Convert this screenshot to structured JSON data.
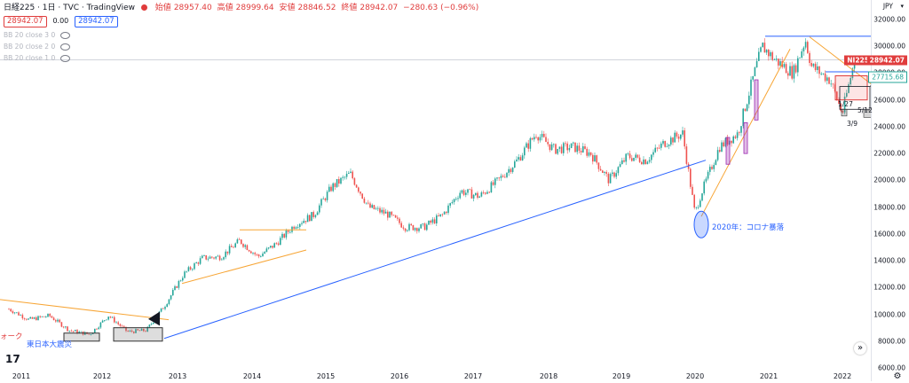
{
  "header": {
    "symbol": "日経225",
    "interval": "1日",
    "source": "TVC",
    "platform": "TradingView",
    "open_label": "始値",
    "open": "28957.40",
    "high_label": "高値",
    "high": "28999.64",
    "low_label": "安値",
    "low": "28846.52",
    "close_label": "終値",
    "close": "28942.07",
    "change": "−280.63 (−0.96%)",
    "price_red": "28942.07",
    "spread": "0.00",
    "price_blue": "28942.07"
  },
  "indicators": [
    {
      "label": "BB 20 close 3 0"
    },
    {
      "label": "BB 20 close 2 0"
    },
    {
      "label": "BB 20 close 1 0"
    }
  ],
  "axis": {
    "currency": "JPY",
    "y_ticks": [
      "32000.00",
      "30000.00",
      "28000.00",
      "26000.00",
      "24000.00",
      "22000.00",
      "20000.00",
      "18000.00",
      "16000.00",
      "14000.00",
      "12000.00",
      "10000.00",
      "8000.00",
      "6000.00"
    ],
    "x_ticks": [
      "2011",
      "2012",
      "2013",
      "2014",
      "2015",
      "2016",
      "2017",
      "2018",
      "2019",
      "2020",
      "2021",
      "2022"
    ]
  },
  "price_tags": {
    "ticker": "NI225",
    "last": "28942.07",
    "level": "27715.68"
  },
  "annotations": {
    "corona": "2020年：コロナ暴落",
    "earthquake": "東日本大震災",
    "left_edge": "ォーク",
    "date_a": "1/27",
    "date_b": "3/9",
    "date_c": "5/12"
  },
  "colors": {
    "up": "#26a69a",
    "down": "#ef5350",
    "trend_blue": "#2962ff",
    "trend_orange": "#f7a535",
    "rect_purple": "#9c27b0"
  },
  "chart_data": {
    "type": "candlestick",
    "title": "日経225 · 1日 · TVC",
    "ylim": [
      6000,
      32000
    ],
    "x": [
      "2011-01",
      "2011-04",
      "2011-07",
      "2011-10",
      "2012-01",
      "2012-04",
      "2012-07",
      "2012-10",
      "2013-01",
      "2013-04",
      "2013-07",
      "2013-10",
      "2014-01",
      "2014-04",
      "2014-07",
      "2014-10",
      "2015-01",
      "2015-04",
      "2015-07",
      "2015-10",
      "2016-01",
      "2016-04",
      "2016-07",
      "2016-10",
      "2017-01",
      "2017-04",
      "2017-07",
      "2017-10",
      "2018-01",
      "2018-04",
      "2018-07",
      "2018-10",
      "2019-01",
      "2019-04",
      "2019-07",
      "2019-10",
      "2020-01",
      "2020-03",
      "2020-04",
      "2020-07",
      "2020-10",
      "2021-01",
      "2021-02",
      "2021-04",
      "2021-07",
      "2021-09",
      "2021-10",
      "2022-01",
      "2022-03",
      "2022-04",
      "2022-05"
    ],
    "series": [
      {
        "name": "日経225",
        "values": [
          10400,
          9600,
          9900,
          8800,
          8500,
          9900,
          8700,
          8800,
          10700,
          13000,
          14200,
          14300,
          15500,
          14300,
          15300,
          16700,
          17400,
          19500,
          20500,
          18000,
          17500,
          16500,
          16500,
          17400,
          19200,
          18800,
          20000,
          21500,
          23500,
          22300,
          22500,
          22000,
          20000,
          21800,
          21500,
          22800,
          23500,
          17500,
          19000,
          22500,
          23500,
          28500,
          30000,
          29000,
          28000,
          30500,
          28500,
          27500,
          25000,
          27000,
          28942
        ]
      }
    ]
  }
}
